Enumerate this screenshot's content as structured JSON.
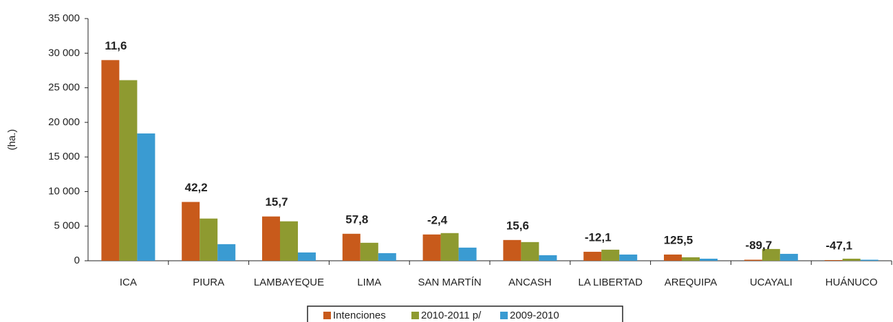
{
  "chart_data": {
    "type": "bar",
    "y_label": "(ha.)",
    "categories": [
      "ICA",
      "PIURA",
      "LAMBAYEQUE",
      "LIMA",
      "SAN MARTÍN",
      "ANCASH",
      "LA LIBERTAD",
      "AREQUIPA",
      "UCAYALI",
      "HUÁNUCO"
    ],
    "series": [
      {
        "name": "Intenciones",
        "color": "#c85a1b",
        "values": [
          29000,
          8500,
          6400,
          3900,
          3800,
          3000,
          1300,
          900,
          150,
          100
        ]
      },
      {
        "name": "2010-2011 p/",
        "color": "#8e9a30",
        "values": [
          26100,
          6100,
          5700,
          2600,
          4000,
          2700,
          1600,
          500,
          1700,
          300
        ]
      },
      {
        "name": "2009-2010",
        "color": "#3a9bd2",
        "values": [
          18400,
          2400,
          1200,
          1100,
          1900,
          800,
          900,
          300,
          1000,
          150
        ]
      }
    ],
    "annotations": [
      "11,6",
      "42,2",
      "15,7",
      "57,8",
      "-2,4",
      "15,6",
      "-12,1",
      "125,5",
      "-89,7",
      "-47,1"
    ],
    "ylim": [
      0,
      35000
    ],
    "yticks": [
      0,
      {
        "value": 5000,
        "label": "5 000"
      },
      {
        "value": 10000,
        "label": "10 000"
      },
      {
        "value": 15000,
        "label": "15 000"
      },
      {
        "value": 20000,
        "label": "20 000"
      },
      {
        "value": 25000,
        "label": "25 000"
      },
      {
        "value": 30000,
        "label": "30 000"
      },
      {
        "value": 35000,
        "label": "35 000"
      }
    ],
    "legend": "bottom"
  }
}
